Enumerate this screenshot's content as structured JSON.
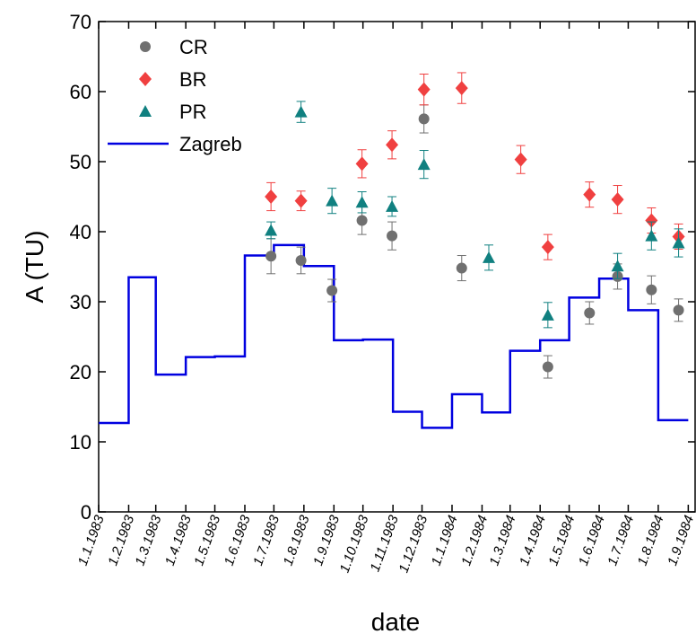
{
  "chart_data": {
    "type": "scatter_step",
    "xlabel": "date",
    "ylabel": "A (TU)",
    "xlim": [
      "1.1.1983",
      "9.9.1984"
    ],
    "xticks": [
      "1.1.1983",
      "1.2.1983",
      "1.3.1983",
      "1.4.1983",
      "1.5.1983",
      "1.6.1983",
      "1.7.1983",
      "1.8.1983",
      "1.9.1983",
      "1.10.1983",
      "1.11.1983",
      "1.12.1983",
      "1.1.1984",
      "1.2.1984",
      "1.3.1984",
      "1.4.1984",
      "1.5.1984",
      "1.6.1984",
      "1.7.1984",
      "1.8.1984",
      "1.9.1984"
    ],
    "ylim": [
      0,
      70
    ],
    "yticks": [
      0,
      10,
      20,
      30,
      40,
      50,
      60,
      70
    ],
    "legend": "top-left",
    "x": [
      "28.6.1983",
      "29.7.1983",
      "30.8.1983",
      "30.9.1983",
      "31.10.1983",
      "3.12.1983",
      "11.1.1984",
      "8.2.1984",
      "12.3.1984",
      "9.4.1984",
      "22.5.1984",
      "20.6.1984",
      "25.7.1984",
      "22.8.1984"
    ],
    "series": [
      {
        "name": "CR",
        "color": "#707070",
        "marker": "circle",
        "values": [
          36.5,
          35.9,
          31.6,
          41.6,
          39.4,
          56.1,
          34.8,
          null,
          null,
          20.7,
          28.4,
          33.6,
          31.7,
          28.8
        ],
        "errors": [
          2.5,
          1.9,
          1.6,
          2.0,
          2.0,
          2.0,
          1.8,
          null,
          null,
          1.6,
          1.6,
          1.8,
          2.0,
          1.6
        ]
      },
      {
        "name": "BR",
        "color": "#f04040",
        "marker": "diamond",
        "values": [
          45.0,
          44.4,
          null,
          49.7,
          52.4,
          60.3,
          60.5,
          null,
          50.3,
          37.8,
          45.3,
          44.6,
          41.6,
          39.3
        ],
        "errors": [
          2.0,
          1.4,
          null,
          2.0,
          2.0,
          2.2,
          2.2,
          null,
          2.0,
          1.8,
          1.8,
          2.0,
          1.8,
          1.8
        ]
      },
      {
        "name": "PR",
        "color": "#108080",
        "marker": "triangle",
        "values": [
          40.2,
          57.1,
          44.4,
          44.2,
          43.6,
          49.6,
          null,
          36.3,
          null,
          28.1,
          null,
          35.1,
          39.4,
          38.4
        ],
        "errors": [
          1.2,
          1.5,
          1.8,
          1.5,
          1.4,
          2.0,
          null,
          1.8,
          null,
          1.8,
          null,
          1.8,
          2.0,
          2.0
        ]
      }
    ],
    "step_series": {
      "name": "Zagreb",
      "color": "#0000e0",
      "x": [
        "1.1.1983",
        "1.2.1983",
        "1.3.1983",
        "1.4.1983",
        "1.5.1983",
        "1.6.1983",
        "1.7.1983",
        "1.8.1983",
        "1.9.1983",
        "1.10.1983",
        "1.11.1983",
        "1.12.1983",
        "1.1.1984",
        "1.2.1984",
        "1.3.1984",
        "1.4.1984",
        "1.5.1984",
        "1.6.1984",
        "1.7.1984",
        "1.8.1984",
        "1.9.1984"
      ],
      "values": [
        12.7,
        33.5,
        19.6,
        22.1,
        22.2,
        36.6,
        38.1,
        35.1,
        24.5,
        24.6,
        14.3,
        12.0,
        16.8,
        14.2,
        23.0,
        24.5,
        30.6,
        33.3,
        28.8,
        13.1,
        null
      ]
    }
  }
}
